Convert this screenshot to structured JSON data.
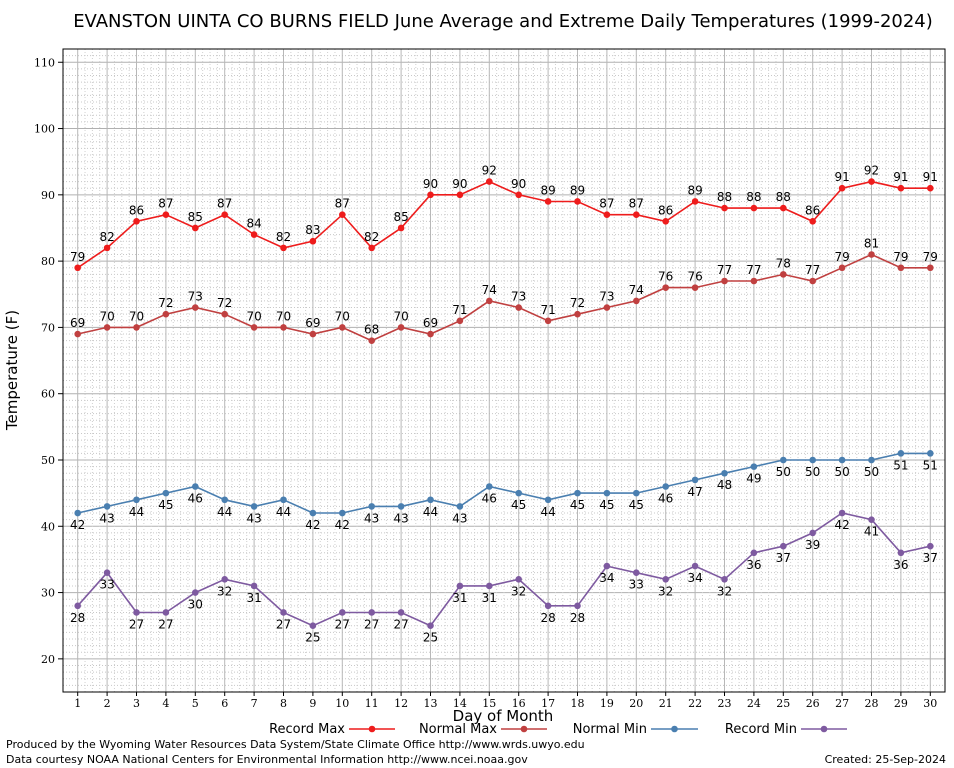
{
  "chart_data": {
    "type": "line",
    "title": "EVANSTON UINTA CO BURNS FIELD June Average and Extreme Daily Temperatures (1999-2024)",
    "xlabel": "Day of Month",
    "ylabel": "Temperature (F)",
    "x": [
      1,
      2,
      3,
      4,
      5,
      6,
      7,
      8,
      9,
      10,
      11,
      12,
      13,
      14,
      15,
      16,
      17,
      18,
      19,
      20,
      21,
      22,
      23,
      24,
      25,
      26,
      27,
      28,
      29,
      30
    ],
    "xlim": [
      0.5,
      30.5
    ],
    "ylim": [
      15,
      112
    ],
    "yticks": [
      20,
      30,
      40,
      50,
      60,
      70,
      80,
      90,
      100,
      110
    ],
    "grid": true,
    "legend_position": "bottom",
    "series": [
      {
        "name": "Record Max",
        "color": "#ee1c1c",
        "label_position": "above",
        "values": [
          79,
          82,
          86,
          87,
          85,
          87,
          84,
          82,
          83,
          87,
          82,
          85,
          90,
          90,
          92,
          90,
          89,
          89,
          87,
          87,
          86,
          89,
          88,
          88,
          88,
          86,
          91,
          92,
          91,
          91
        ]
      },
      {
        "name": "Normal Max",
        "color": "#c04040",
        "label_position": "above",
        "values": [
          69,
          70,
          70,
          72,
          73,
          72,
          70,
          70,
          69,
          70,
          68,
          70,
          69,
          71,
          74,
          73,
          71,
          72,
          73,
          74,
          76,
          76,
          77,
          77,
          78,
          77,
          79,
          81,
          79,
          79
        ]
      },
      {
        "name": "Normal Min",
        "color": "#4a7fb0",
        "label_position": "below",
        "values": [
          42,
          43,
          44,
          45,
          46,
          44,
          43,
          44,
          42,
          42,
          43,
          43,
          44,
          43,
          46,
          45,
          44,
          45,
          45,
          45,
          46,
          47,
          48,
          49,
          50,
          50,
          50,
          50,
          51,
          51
        ]
      },
      {
        "name": "Record Min",
        "color": "#7e5aa0",
        "label_position": "below",
        "values": [
          28,
          33,
          27,
          27,
          30,
          32,
          31,
          27,
          25,
          27,
          27,
          27,
          25,
          31,
          31,
          32,
          28,
          28,
          34,
          33,
          32,
          34,
          32,
          36,
          37,
          39,
          42,
          41,
          36,
          37
        ]
      }
    ]
  },
  "footer": {
    "produced_by": "Produced by the Wyoming Water Resources Data System/State Climate Office http://www.wrds.uwyo.edu",
    "courtesy": "Data courtesy NOAA National Centers for Environmental Information http://www.ncei.noaa.gov",
    "created": "Created:  25-Sep-2024"
  }
}
